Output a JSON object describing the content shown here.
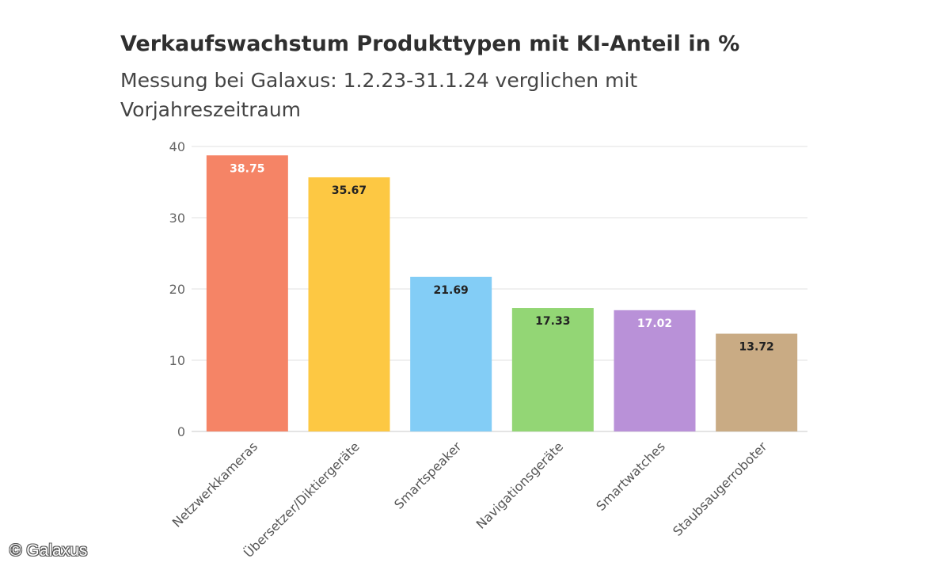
{
  "chart_data": {
    "type": "bar",
    "title": "Verkaufswachstum Produkttypen mit KI-Anteil in %",
    "subtitle": "Messung bei Galaxus: 1.2.23-31.1.24 verglichen mit Vorjahreszeitraum",
    "categories": [
      "Netzwerkkameras",
      "Übersetzer/Diktiergeräte",
      "Smartspeaker",
      "Navigationsgeräte",
      "Smartwatches",
      "Staubsaugerroboter"
    ],
    "values": [
      38.75,
      35.67,
      21.69,
      17.33,
      17.02,
      13.72
    ],
    "value_labels": [
      "38.75",
      "35.67",
      "21.69",
      "17.33",
      "17.02",
      "13.72"
    ],
    "colors": [
      "#f58466",
      "#fdc843",
      "#83cdf6",
      "#93d675",
      "#b991d8",
      "#c9ab84"
    ],
    "label_colors": [
      "#ffffff",
      "#222222",
      "#222222",
      "#222222",
      "#ffffff",
      "#222222"
    ],
    "yticks": [
      0,
      10,
      20,
      30,
      40
    ],
    "ylim": [
      0,
      40
    ],
    "xlabel": "",
    "ylabel": "",
    "grid": true
  },
  "credit": "© Galaxus"
}
